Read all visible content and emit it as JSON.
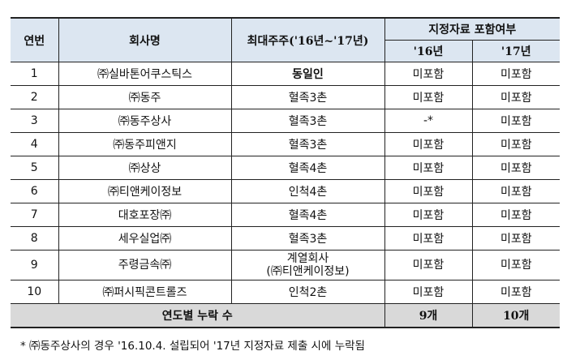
{
  "header": {
    "no": "연번",
    "company": "회사명",
    "shareholder": "최대주주('16년~'17년)",
    "inclusion": "지정자료 포함여부",
    "y16": "'16년",
    "y17": "'17년"
  },
  "rows": [
    {
      "no": "1",
      "company": "㈜실바톤어쿠스틱스",
      "shareholder": "동일인",
      "y16": "미포함",
      "y17": "미포함",
      "bold": true
    },
    {
      "no": "2",
      "company": "㈜동주",
      "shareholder": "혈족3촌",
      "y16": "미포함",
      "y17": "미포함"
    },
    {
      "no": "3",
      "company": "㈜동주상사",
      "shareholder": "혈족3촌",
      "y16": "-*",
      "y17": "미포함"
    },
    {
      "no": "4",
      "company": "㈜동주피앤지",
      "shareholder": "혈족3촌",
      "y16": "미포함",
      "y17": "미포함"
    },
    {
      "no": "5",
      "company": "㈜상상",
      "shareholder": "혈족4촌",
      "y16": "미포함",
      "y17": "미포함"
    },
    {
      "no": "6",
      "company": "㈜티앤케이정보",
      "shareholder": "인척4촌",
      "y16": "미포함",
      "y17": "미포함"
    },
    {
      "no": "7",
      "company": "대호포장㈜",
      "shareholder": "혈족4촌",
      "y16": "미포함",
      "y17": "미포함"
    },
    {
      "no": "8",
      "company": "세우실업㈜",
      "shareholder": "혈족3촌",
      "y16": "미포함",
      "y17": "미포함"
    },
    {
      "no": "9",
      "company": "주령금속㈜",
      "shareholder": "계열회사",
      "shareholder2": "(㈜티앤케이정보)",
      "y16": "미포함",
      "y17": "미포함"
    },
    {
      "no": "10",
      "company": "㈜퍼시픽콘트롤즈",
      "shareholder": "인척2촌",
      "y16": "미포함",
      "y17": "미포함"
    }
  ],
  "total": {
    "label": "연도별 누락 수",
    "y16": "9개",
    "y17": "10개"
  },
  "footnote": "* ㈜동주상사의 경우 '16.10.4. 설립되어 '17년 지정자료 제출 시에 누락됨"
}
